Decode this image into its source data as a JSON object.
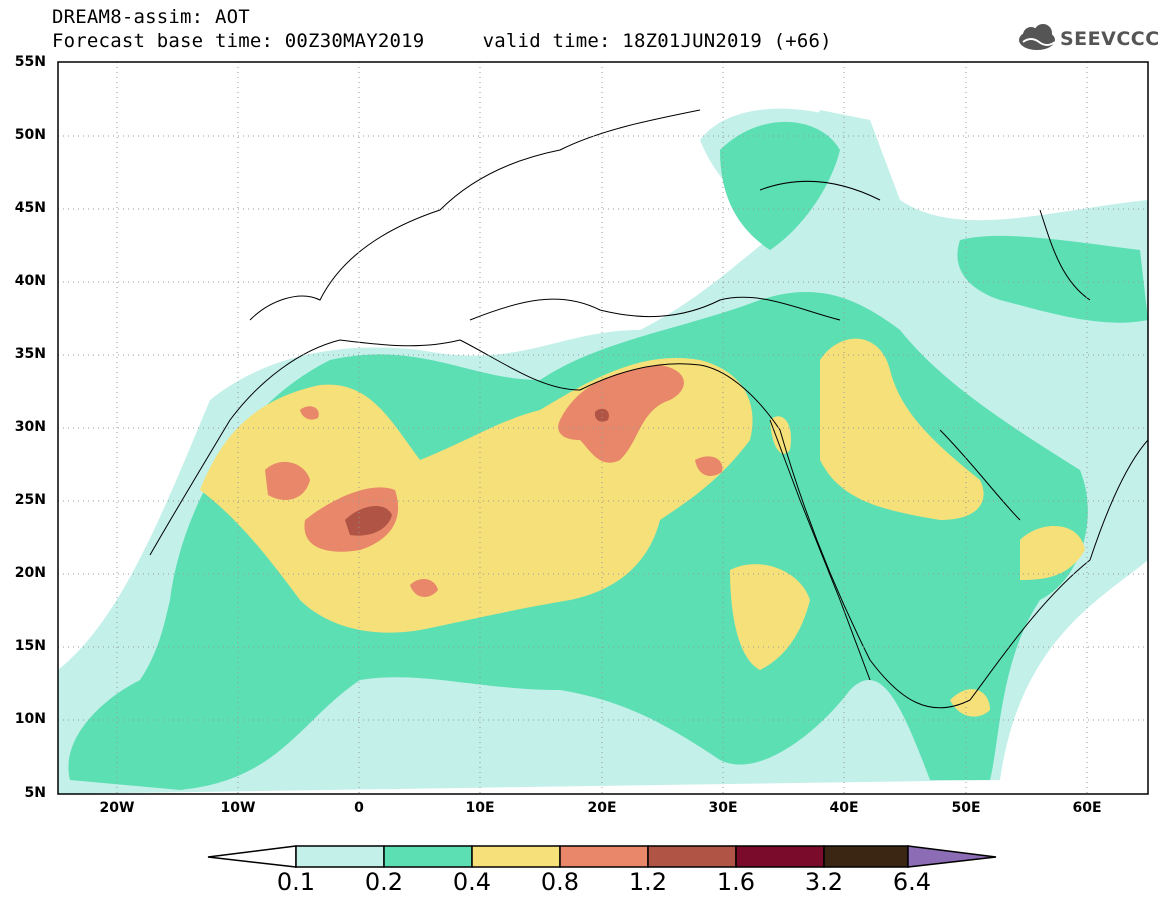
{
  "title": {
    "line1": "DREAM8-assim: AOT",
    "line2": "Forecast base time: 00Z30MAY2019     valid time: 18Z01JUN2019 (+66)"
  },
  "logo": {
    "text": "SEEVCCC",
    "icon": "cloud-icon"
  },
  "map": {
    "projection": "cylindrical",
    "lon_range": [
      -25,
      65
    ],
    "lat_range": [
      5,
      55
    ],
    "lat_ticks": [
      "55N",
      "50N",
      "45N",
      "40N",
      "35N",
      "30N",
      "25N",
      "20N",
      "15N",
      "10N",
      "5N"
    ],
    "lon_ticks": [
      "20W",
      "10W",
      "0",
      "10E",
      "20E",
      "30E",
      "40E",
      "50E",
      "60E"
    ],
    "grid": "dotted"
  },
  "colorbar": {
    "labels": [
      "0.1",
      "0.2",
      "0.4",
      "0.8",
      "1.2",
      "1.6",
      "3.2",
      "6.4"
    ],
    "colors": [
      "#c4f0ea",
      "#5ddfb4",
      "#f5e07a",
      "#e8876a",
      "#b05445",
      "#7a0b2b",
      "#3b2614",
      "#8c6cb5"
    ]
  }
}
